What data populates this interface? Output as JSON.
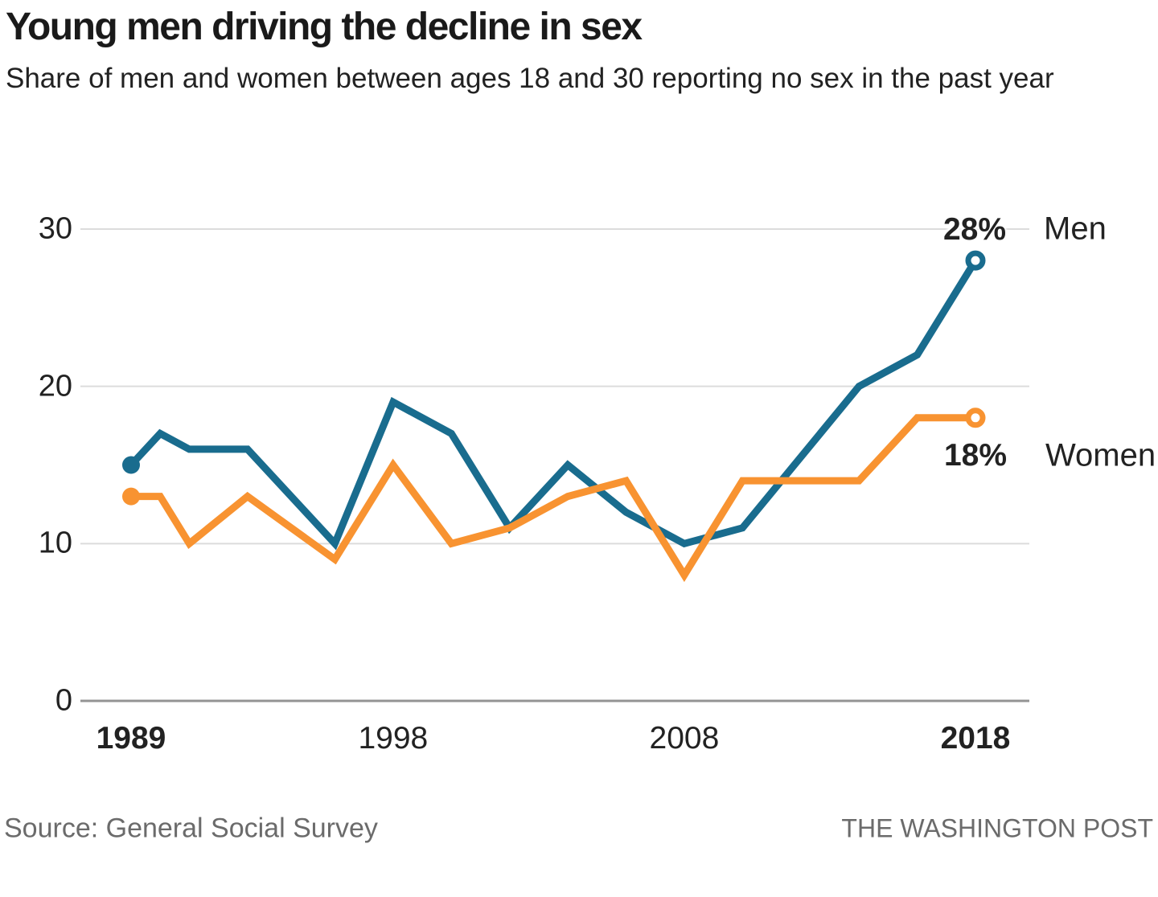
{
  "header": {
    "title": "Young men driving the decline in sex",
    "subtitle": "Share of men and women between ages 18 and 30 reporting no sex in the past year"
  },
  "chart_data": {
    "type": "line",
    "x": [
      1989,
      1990,
      1991,
      1993,
      1996,
      1998,
      2000,
      2002,
      2004,
      2006,
      2008,
      2010,
      2014,
      2016,
      2018
    ],
    "series": [
      {
        "name": "Men",
        "color": "#196C8E",
        "values": [
          15,
          17,
          16,
          16,
          10,
          19,
          17,
          11,
          15,
          12,
          10,
          11,
          20,
          22,
          28
        ],
        "end_label": "28%",
        "start_marker": "filled-dot",
        "end_marker": "open-circle"
      },
      {
        "name": "Women",
        "color": "#F89331",
        "values": [
          13,
          13,
          10,
          13,
          9,
          15,
          10,
          11,
          13,
          14,
          8,
          14,
          14,
          18,
          18
        ],
        "end_label": "18%",
        "start_marker": "filled-dot",
        "end_marker": "open-circle"
      }
    ],
    "title": "Young men driving the decline in sex",
    "xlabel": "",
    "ylabel": "",
    "ylim": [
      0,
      30
    ],
    "yticks": [
      0,
      10,
      20,
      30
    ],
    "ytick_labels": [
      "0",
      "10",
      "20",
      "30"
    ],
    "xticks": [
      1989,
      1998,
      2008,
      2018
    ],
    "xtick_labels": [
      "1989",
      "1998",
      "2008",
      "2018"
    ],
    "grid": "horizontal",
    "legend_position": "direct-labels-right",
    "gridline_color": "#dcdcdc",
    "baseline_color": "#949494"
  },
  "footer": {
    "source": "Source: General Social Survey",
    "publisher": "THE WASHINGTON POST"
  }
}
